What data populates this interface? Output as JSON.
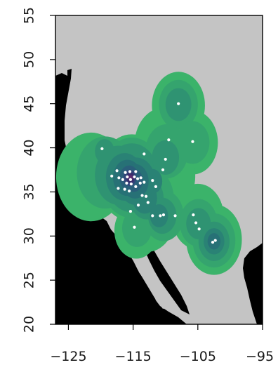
{
  "map": {
    "projection": "longitude-latitude",
    "x_range": [
      -127,
      -95
    ],
    "y_range": [
      20,
      55
    ],
    "x_ticks": [
      {
        "value": -125,
        "label": "−125"
      },
      {
        "value": -115,
        "label": "−115"
      },
      {
        "value": -105,
        "label": "−105"
      },
      {
        "value": -95,
        "label": "−95"
      }
    ],
    "y_ticks": [
      {
        "value": 20,
        "label": "20"
      },
      {
        "value": 25,
        "label": "25"
      },
      {
        "value": 30,
        "label": "30"
      },
      {
        "value": 35,
        "label": "35"
      },
      {
        "value": 40,
        "label": "40"
      },
      {
        "value": 45,
        "label": "45"
      },
      {
        "value": 50,
        "label": "50"
      },
      {
        "value": 55,
        "label": "55"
      }
    ],
    "colors": {
      "ocean": "#000000",
      "land": "#c4c4c4",
      "density_levels": [
        "#3bb36a",
        "#35a46e",
        "#2f9372",
        "#2a8275",
        "#277176",
        "#2a5f7a",
        "#31467a",
        "#3a2d6d",
        "#5b2a6e"
      ],
      "points": "#ffffff"
    }
  },
  "chart_data": {
    "type": "scatter",
    "title": "",
    "xlabel": "",
    "ylabel": "",
    "xlim": [
      -127,
      -95
    ],
    "ylim": [
      20,
      55
    ],
    "grid": false,
    "points_lon_lat": [
      [
        -108.0,
        45.0
      ],
      [
        -119.8,
        39.9
      ],
      [
        -109.5,
        40.9
      ],
      [
        -105.8,
        40.7
      ],
      [
        -113.3,
        39.3
      ],
      [
        -110.0,
        38.7
      ],
      [
        -110.4,
        37.5
      ],
      [
        -117.5,
        37.4
      ],
      [
        -116.2,
        37.2
      ],
      [
        -115.5,
        37.3
      ],
      [
        -114.6,
        37.3
      ],
      [
        -118.3,
        36.8
      ],
      [
        -117.2,
        36.6
      ],
      [
        -116.6,
        36.4
      ],
      [
        -115.9,
        36.7
      ],
      [
        -115.4,
        36.4
      ],
      [
        -114.8,
        36.7
      ],
      [
        -114.3,
        36.5
      ],
      [
        -113.8,
        36.6
      ],
      [
        -116.0,
        36.0
      ],
      [
        -115.3,
        35.9
      ],
      [
        -114.6,
        35.6
      ],
      [
        -113.9,
        36.0
      ],
      [
        -113.3,
        36.1
      ],
      [
        -112.0,
        36.3
      ],
      [
        -111.5,
        35.6
      ],
      [
        -117.3,
        35.4
      ],
      [
        -116.3,
        35.3
      ],
      [
        -115.6,
        35.1
      ],
      [
        -113.6,
        34.6
      ],
      [
        -113.0,
        34.5
      ],
      [
        -112.7,
        33.8
      ],
      [
        -114.2,
        33.5
      ],
      [
        -115.4,
        32.8
      ],
      [
        -112.0,
        32.3
      ],
      [
        -110.8,
        32.3
      ],
      [
        -110.3,
        32.4
      ],
      [
        -108.5,
        32.3
      ],
      [
        -105.7,
        32.4
      ],
      [
        -105.3,
        31.5
      ],
      [
        -104.8,
        30.8
      ],
      [
        -114.8,
        31.0
      ],
      [
        -102.3,
        29.5
      ],
      [
        -102.7,
        29.3
      ]
    ],
    "density": [
      {
        "level": 1,
        "regions": [
          [
            -121.5,
            36.7,
            5.4
          ],
          [
            -115.2,
            36.6,
            5.3
          ],
          [
            -108.0,
            44.8,
            4.1
          ],
          [
            -110.2,
            40.3,
            4.6
          ],
          [
            -105.8,
            40.6,
            3.9
          ],
          [
            -111.0,
            34.6,
            5.0
          ],
          [
            -112.8,
            32.2,
            4.3
          ],
          [
            -105.0,
            32.2,
            4.0
          ],
          [
            -102.5,
            29.6,
            4.3
          ],
          [
            -114.5,
            30.6,
            3.4
          ],
          [
            -110.0,
            36.8,
            4.6
          ]
        ]
      },
      {
        "level": 2,
        "regions": [
          [
            -119.3,
            37.2,
            4.4
          ],
          [
            -115.2,
            36.6,
            4.9
          ],
          [
            -108.0,
            44.9,
            3.0
          ],
          [
            -109.8,
            39.6,
            3.3
          ],
          [
            -105.8,
            40.6,
            2.6
          ],
          [
            -112.6,
            34.2,
            3.9
          ],
          [
            -110.3,
            32.3,
            3.1
          ],
          [
            -104.9,
            31.5,
            2.9
          ],
          [
            -102.5,
            29.5,
            3.3
          ],
          [
            -114.4,
            30.9,
            2.3
          ]
        ]
      },
      {
        "level": 3,
        "regions": [
          [
            -117.3,
            36.9,
            3.6
          ],
          [
            -115.2,
            36.6,
            4.2
          ],
          [
            -108.0,
            44.9,
            2.0
          ],
          [
            -110.0,
            38.9,
            2.1
          ],
          [
            -112.9,
            34.3,
            2.6
          ],
          [
            -110.5,
            32.3,
            2.2
          ],
          [
            -104.9,
            31.4,
            1.9
          ],
          [
            -102.5,
            29.4,
            2.4
          ],
          [
            -119.4,
            39.6,
            1.5
          ]
        ]
      },
      {
        "level": 4,
        "regions": [
          [
            -116.3,
            36.7,
            2.9
          ],
          [
            -114.5,
            36.2,
            2.9
          ],
          [
            -113.2,
            34.3,
            1.9
          ],
          [
            -102.5,
            29.4,
            1.6
          ],
          [
            -111.0,
            32.3,
            1.4
          ],
          [
            -112.0,
            36.2,
            1.5
          ]
        ]
      },
      {
        "level": 5,
        "regions": [
          [
            -115.9,
            36.6,
            2.2
          ],
          [
            -114.7,
            36.2,
            2.1
          ],
          [
            -102.5,
            29.4,
            1.0
          ]
        ]
      },
      {
        "level": 6,
        "regions": [
          [
            -115.6,
            36.6,
            1.5
          ],
          [
            -114.9,
            36.3,
            1.4
          ]
        ]
      },
      {
        "level": 7,
        "regions": [
          [
            -115.5,
            36.6,
            1.0
          ]
        ]
      },
      {
        "level": 8,
        "regions": [
          [
            -115.4,
            36.6,
            0.65
          ]
        ]
      },
      {
        "level": 9,
        "regions": [
          [
            -115.4,
            36.6,
            0.35
          ]
        ]
      }
    ]
  }
}
